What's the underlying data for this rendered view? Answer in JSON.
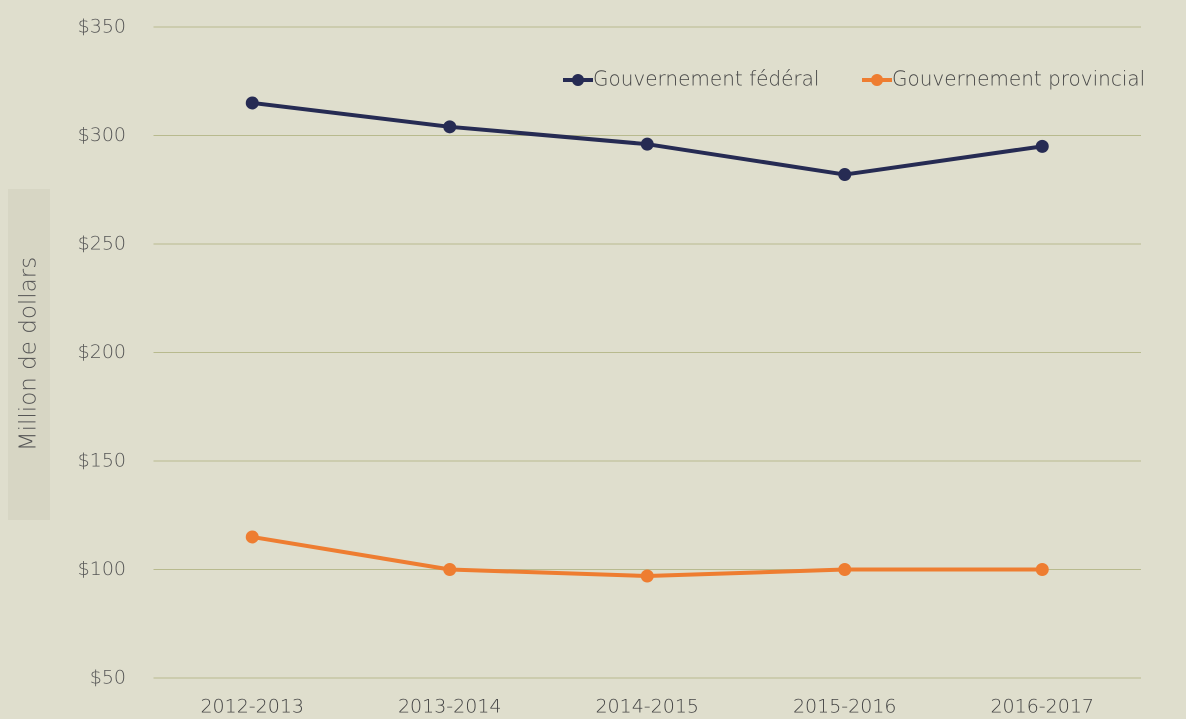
{
  "chart_data": {
    "type": "line",
    "y_label": "Million de dollars",
    "categories": [
      "2012-2013",
      "2013-2014",
      "2014-2015",
      "2015-2016",
      "2016-2017"
    ],
    "series": [
      {
        "name": "Gouvernement fédéral",
        "color": "#262b53",
        "values": [
          315,
          304,
          296,
          282,
          295
        ]
      },
      {
        "name": "Gouvernement provincial",
        "color": "#ee7d31",
        "values": [
          115,
          100,
          97,
          100,
          100
        ]
      }
    ],
    "ylim": [
      50,
      350
    ],
    "yticks": [
      {
        "value": 50,
        "label": "$50"
      },
      {
        "value": 100,
        "label": "$100"
      },
      {
        "value": 150,
        "label": "$150"
      },
      {
        "value": 200,
        "label": "$200"
      },
      {
        "value": 250,
        "label": "$250"
      },
      {
        "value": 300,
        "label": "$300"
      },
      {
        "value": 350,
        "label": "$350"
      }
    ],
    "grid": true,
    "legend": "upper right"
  }
}
